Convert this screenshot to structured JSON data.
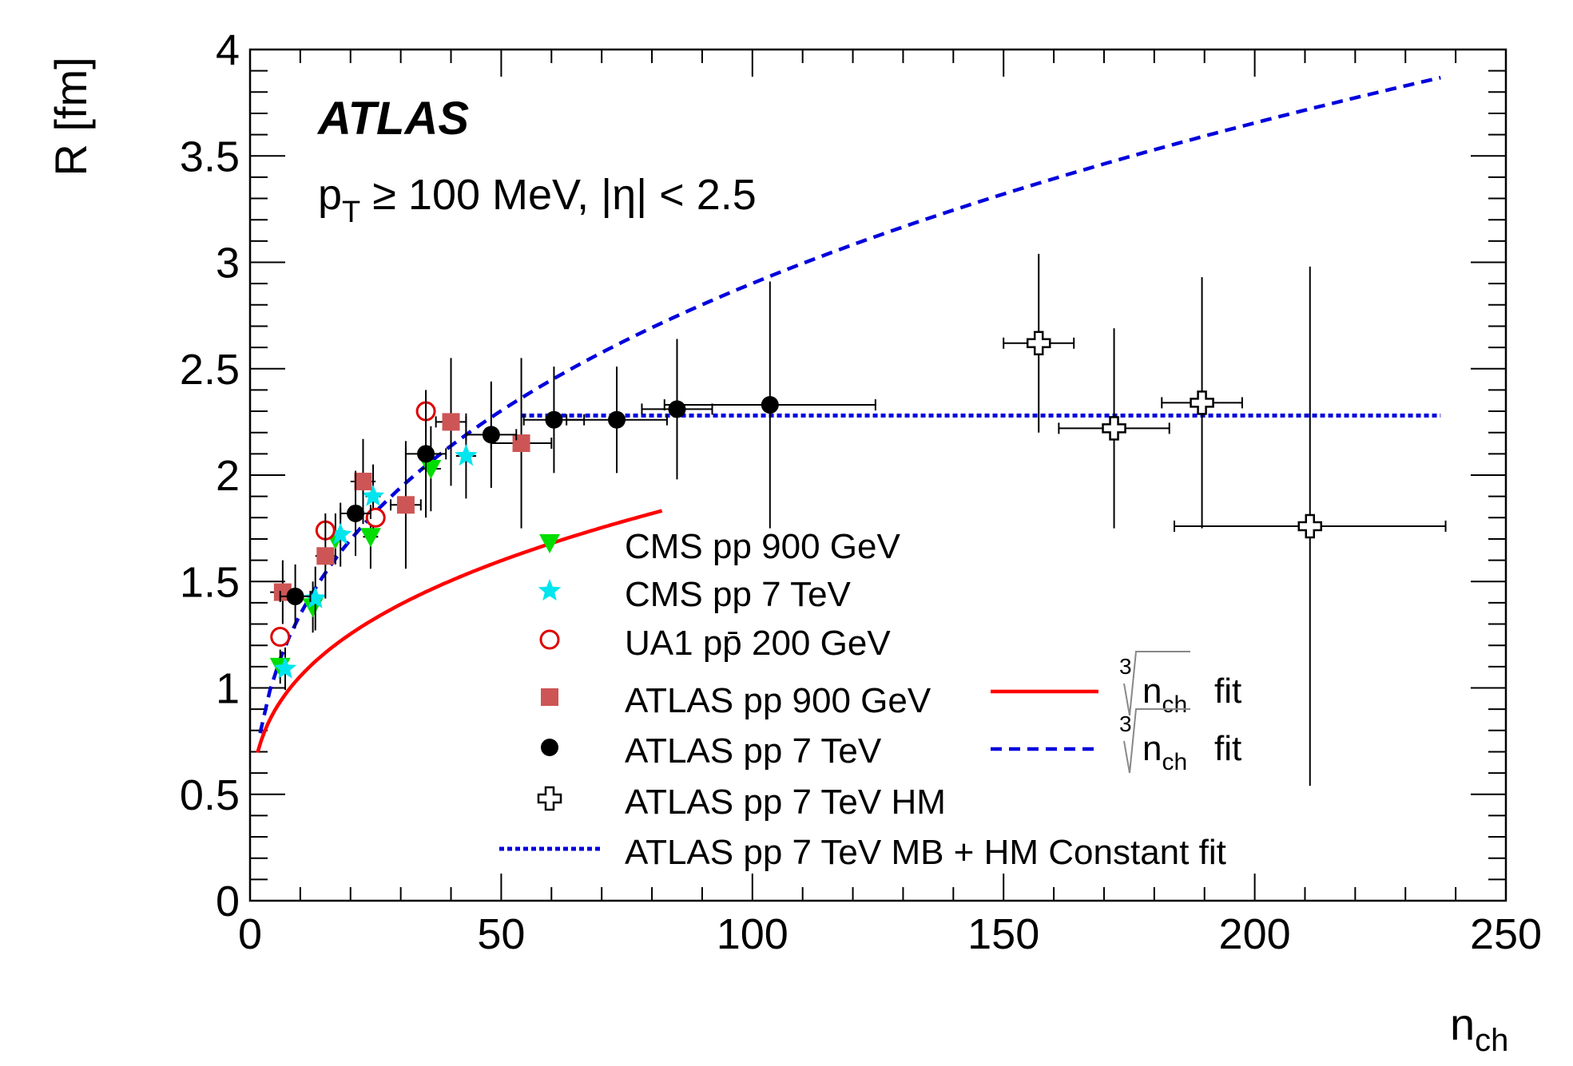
{
  "chart_data": {
    "type": "scatter",
    "title": "",
    "experiment_label": "ATLAS",
    "cut_label": {
      "p": "p",
      "sub": "T",
      "rest": " ≥ 100 MeV, |η| < 2.5"
    },
    "xlabel": {
      "main": "n",
      "sub": "ch"
    },
    "ylabel": "R [fm]",
    "xlim": [
      0,
      250
    ],
    "ylim": [
      0,
      4
    ],
    "x_ticks": [
      "0",
      "50",
      "100",
      "150",
      "200",
      "250"
    ],
    "x_tick_values": [
      0,
      50,
      100,
      150,
      200,
      250
    ],
    "y_ticks": [
      "0",
      "0.5",
      "1",
      "1.5",
      "2",
      "2.5",
      "3",
      "3.5",
      "4"
    ],
    "y_tick_values": [
      0,
      0.5,
      1,
      1.5,
      2,
      2.5,
      3,
      3.5,
      4
    ],
    "series": [
      {
        "name": "CMS pp 900 GeV",
        "marker": "triangle-down",
        "color": "#00dd00",
        "points": [
          {
            "x": 6,
            "y": 1.1,
            "xerr": 1,
            "yerr": 0.08
          },
          {
            "x": 12.5,
            "y": 1.38,
            "xerr": 1,
            "yerr": 0.12
          },
          {
            "x": 17,
            "y": 1.7,
            "xerr": 1,
            "yerr": 0.12
          },
          {
            "x": 24,
            "y": 1.71,
            "xerr": 1.5,
            "yerr": 0.15
          },
          {
            "x": 36,
            "y": 2.03,
            "xerr": 2,
            "yerr": 0.2
          }
        ]
      },
      {
        "name": "CMS pp 7 TeV",
        "marker": "star",
        "color": "#00e5ee",
        "points": [
          {
            "x": 7,
            "y": 1.09,
            "xerr": 1,
            "yerr": 0.1
          },
          {
            "x": 13,
            "y": 1.42,
            "xerr": 1,
            "yerr": 0.15
          },
          {
            "x": 18,
            "y": 1.72,
            "xerr": 1,
            "yerr": 0.15
          },
          {
            "x": 24.5,
            "y": 1.9,
            "xerr": 1.5,
            "yerr": 0.15
          },
          {
            "x": 43,
            "y": 2.09,
            "xerr": 2,
            "yerr": 0.2
          }
        ]
      },
      {
        "name": "UA1 pp̄ 200 GeV",
        "marker": "open-circle",
        "color": "#dd0000",
        "points": [
          {
            "x": 6,
            "y": 1.24
          },
          {
            "x": 15,
            "y": 1.74
          },
          {
            "x": 25,
            "y": 1.8
          },
          {
            "x": 35,
            "y": 2.3
          }
        ]
      },
      {
        "name": "ATLAS pp 900 GeV",
        "marker": "square",
        "color": "#cd5555",
        "points": [
          {
            "x": 6.5,
            "y": 1.45,
            "xerr": 2.5,
            "yerr": 0.15
          },
          {
            "x": 15,
            "y": 1.62,
            "xerr": 2,
            "yerr": 0.2
          },
          {
            "x": 22.5,
            "y": 1.97,
            "xerr": 2.5,
            "yerr": 0.2
          },
          {
            "x": 31,
            "y": 1.86,
            "xerr": 3,
            "yerr": 0.3
          },
          {
            "x": 40,
            "y": 2.25,
            "xerr": 3,
            "yerr": 0.3
          },
          {
            "x": 54,
            "y": 2.15,
            "xerr": 6,
            "yerr": 0.4
          }
        ]
      },
      {
        "name": "ATLAS pp 7 TeV",
        "marker": "filled-circle",
        "color": "#000000",
        "points": [
          {
            "x": 9,
            "y": 1.43,
            "xerr": 3,
            "yerr": 0.15
          },
          {
            "x": 21,
            "y": 1.82,
            "xerr": 3,
            "yerr": 0.2
          },
          {
            "x": 35,
            "y": 2.1,
            "xerr": 4,
            "yerr": 0.3
          },
          {
            "x": 48,
            "y": 2.19,
            "xerr": 5,
            "yerr": 0.25
          },
          {
            "x": 60.5,
            "y": 2.26,
            "xerr": 6,
            "yerr": 0.25
          },
          {
            "x": 73,
            "y": 2.26,
            "xerr": 10,
            "yerr": 0.25
          },
          {
            "x": 85,
            "y": 2.31,
            "xerr": 7,
            "yerr": 0.33
          },
          {
            "x": 103.5,
            "y": 2.33,
            "xerr": 21,
            "yerr": 0.58
          }
        ]
      },
      {
        "name": "ATLAS pp 7 TeV HM",
        "marker": "open-cross",
        "color": "#000000",
        "points": [
          {
            "x": 157,
            "y": 2.62,
            "xerr": 7,
            "yerr": 0.42
          },
          {
            "x": 172,
            "y": 2.22,
            "xerr": 11,
            "yerr": 0.47
          },
          {
            "x": 189.5,
            "y": 2.34,
            "xerr": 8,
            "yerr": 0.59
          },
          {
            "x": 211,
            "y": 1.76,
            "xerr": 27,
            "yerr": 1.22
          }
        ]
      }
    ],
    "fits": [
      {
        "name": "cube-root n_ch fit (red)",
        "label_main": "n",
        "label_sub": "ch",
        "label_suffix": "fit",
        "label_index": "3",
        "style": "solid",
        "color": "#ff0000",
        "x_range": [
          1.5,
          82
        ],
        "coefficients": {
          "a": 0.29,
          "b": 0.355
        }
      },
      {
        "name": "cube-root n_ch fit (blue dashed)",
        "label_main": "n",
        "label_sub": "ch",
        "label_suffix": "fit",
        "label_index": "3",
        "style": "dashed",
        "color": "#0000dd",
        "x_range": [
          2,
          237
        ],
        "coefficients": {
          "a": 0.0,
          "b": 0.625
        }
      },
      {
        "name": "ATLAS pp 7 TeV MB + HM Constant fit",
        "style": "dotted",
        "color": "#0000dd",
        "x_range": [
          54,
          237
        ],
        "constant": 2.28
      }
    ],
    "legend_main": [
      "CMS pp 900 GeV",
      "CMS pp 7 TeV",
      "UA1 pp̄ 200 GeV",
      "ATLAS pp 900 GeV",
      "ATLAS pp 7 TeV",
      "ATLAS pp 7 TeV HM",
      "ATLAS pp 7 TeV MB + HM Constant fit"
    ]
  }
}
